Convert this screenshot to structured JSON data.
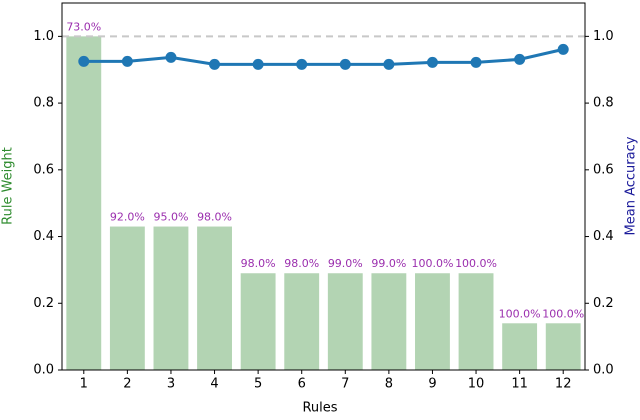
{
  "chart_data": {
    "type": "bar_line",
    "xlabel": "Rules",
    "ylabel": "Rule Weight",
    "y2label": "Mean Accuracy",
    "ylabel_color": "#2e8b2e",
    "y2label_color": "#1a1a9a",
    "categories": [
      "1",
      "2",
      "3",
      "4",
      "5",
      "6",
      "7",
      "8",
      "9",
      "10",
      "11",
      "12"
    ],
    "series": [
      {
        "type": "bar",
        "color": "#b3d4b3",
        "values": [
          1.0,
          0.43,
          0.43,
          0.43,
          0.29,
          0.29,
          0.29,
          0.29,
          0.29,
          0.29,
          0.14,
          0.14
        ]
      },
      {
        "type": "line",
        "axis": "y2",
        "color": "#1f77b4",
        "values": [
          0.925,
          0.925,
          0.937,
          0.916,
          0.916,
          0.916,
          0.916,
          0.916,
          0.922,
          0.922,
          0.931,
          0.961
        ]
      }
    ],
    "annotations": [
      "73.0%",
      "92.0%",
      "95.0%",
      "98.0%",
      "98.0%",
      "98.0%",
      "99.0%",
      "99.0%",
      "100.0%",
      "100.0%",
      "100.0%",
      "100.0%"
    ],
    "annotation_color": "#9b2fae",
    "reference_line": 1.0,
    "ylim": [
      0,
      1.1
    ],
    "y2lim": [
      0,
      1.1
    ],
    "yticks": [
      {
        "value": 0,
        "label": "0.0"
      },
      0.2,
      0.4,
      0.6,
      0.8,
      {
        "value": 1,
        "label": "1.0"
      }
    ],
    "y2ticks": [
      {
        "value": 0,
        "label": "0.0"
      },
      0.2,
      0.4,
      0.6,
      0.8,
      {
        "value": 1,
        "label": "1.0"
      }
    ]
  }
}
